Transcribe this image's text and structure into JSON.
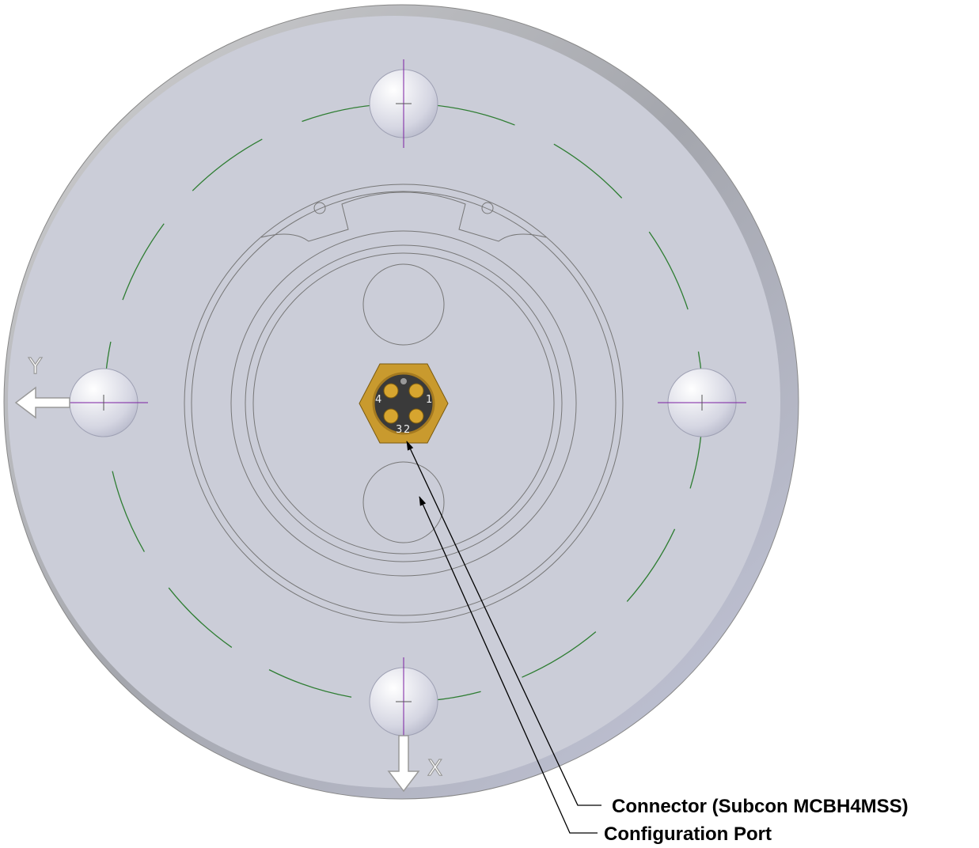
{
  "axes": {
    "y_label": "Y",
    "x_label": "X"
  },
  "pins": [
    "4",
    "1",
    "3",
    "2"
  ],
  "callouts": [
    {
      "label": "Connector (Subcon MCBH4MSS)"
    },
    {
      "label": "Configuration Port"
    }
  ]
}
